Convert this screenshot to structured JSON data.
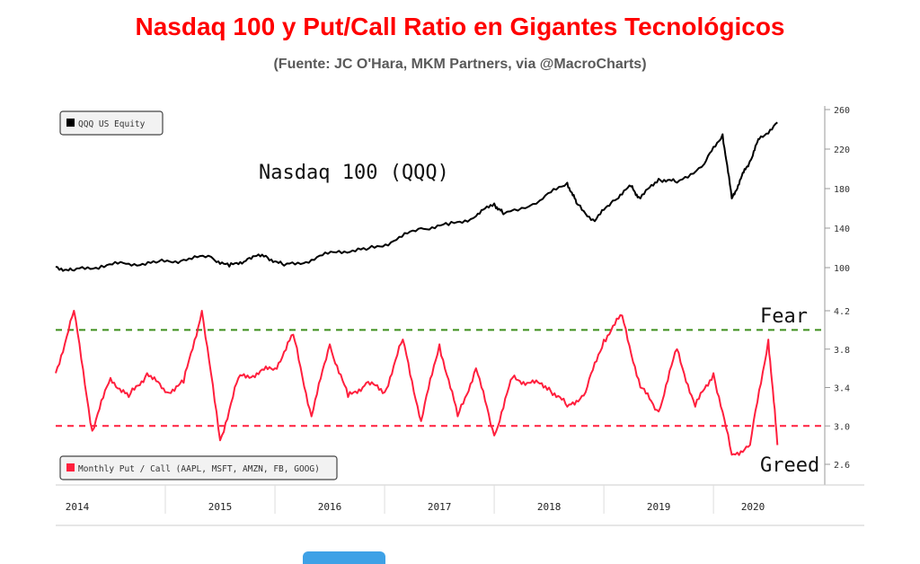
{
  "header": {
    "title": "Nasdaq 100 y Put/Call Ratio en Gigantes Tecnológicos",
    "subtitle": "(Fuente: JC O'Hara, MKM Partners, via @MacroCharts)"
  },
  "colors": {
    "title": "#ff0000",
    "price_line": "#000000",
    "ratio_line": "#ff1f3d",
    "fear_line": "#3d8f1c",
    "greed_line": "#ff1f3d",
    "button": "#3ea1e6"
  },
  "chart_data": [
    {
      "type": "line",
      "legend": "QQQ US Equity",
      "annotation": "Nasdaq 100 (QQQ)",
      "yticks": [
        100,
        140,
        180,
        220,
        260
      ],
      "ylim": [
        95,
        262
      ],
      "x": [
        "2014-01",
        "2014-03",
        "2014-06",
        "2014-09",
        "2014-12",
        "2015-03",
        "2015-06",
        "2015-08",
        "2015-10",
        "2015-12",
        "2016-02",
        "2016-05",
        "2016-08",
        "2016-11",
        "2017-02",
        "2017-05",
        "2017-08",
        "2017-11",
        "2018-01",
        "2018-02",
        "2018-06",
        "2018-09",
        "2018-10",
        "2018-12",
        "2019-02",
        "2019-04",
        "2019-05",
        "2019-07",
        "2019-09",
        "2019-12",
        "2020-02",
        "2020-03",
        "2020-04",
        "2020-05",
        "2020-06",
        "2020-08"
      ],
      "values": [
        101,
        97,
        102,
        104,
        105,
        108,
        111,
        101,
        109,
        112,
        102,
        108,
        117,
        118,
        127,
        140,
        143,
        152,
        165,
        154,
        168,
        186,
        165,
        147,
        168,
        182,
        170,
        190,
        186,
        205,
        235,
        170,
        190,
        208,
        230,
        247
      ]
    },
    {
      "type": "line",
      "legend": "Monthly Put / Call (AAPL, MSFT, AMZN, FB, GOOG)",
      "annotations": [
        "Fear",
        "Greed"
      ],
      "reference_lines": [
        {
          "label": "Fear",
          "value": 4.0
        },
        {
          "label": "Greed",
          "value": 3.0
        }
      ],
      "yticks": [
        2.6,
        3.0,
        3.4,
        3.8,
        4.2
      ],
      "ylim": [
        2.55,
        4.3
      ],
      "x": [
        "2014-01",
        "2014-03",
        "2014-05",
        "2014-07",
        "2014-09",
        "2014-11",
        "2015-01",
        "2015-03",
        "2015-05",
        "2015-07",
        "2015-09",
        "2015-11",
        "2016-01",
        "2016-03",
        "2016-05",
        "2016-07",
        "2016-09",
        "2016-11",
        "2017-01",
        "2017-03",
        "2017-05",
        "2017-07",
        "2017-09",
        "2017-11",
        "2018-01",
        "2018-03",
        "2018-05",
        "2018-07",
        "2018-09",
        "2018-11",
        "2019-01",
        "2019-03",
        "2019-05",
        "2019-07",
        "2019-09",
        "2019-11",
        "2020-01",
        "2020-03",
        "2020-05",
        "2020-07",
        "2020-08"
      ],
      "values": [
        3.55,
        4.2,
        2.95,
        3.5,
        3.3,
        3.55,
        3.35,
        3.45,
        4.2,
        2.85,
        3.5,
        3.55,
        3.6,
        3.95,
        3.1,
        3.85,
        3.3,
        3.45,
        3.35,
        3.9,
        3.05,
        3.85,
        3.1,
        3.6,
        2.9,
        3.5,
        3.45,
        3.4,
        3.2,
        3.35,
        3.9,
        4.15,
        3.4,
        3.15,
        3.8,
        3.2,
        3.55,
        2.7,
        2.8,
        3.9,
        2.8
      ]
    }
  ],
  "x_axis": {
    "years": [
      "2014",
      "2015",
      "2016",
      "2017",
      "2018",
      "2019",
      "2020"
    ]
  }
}
